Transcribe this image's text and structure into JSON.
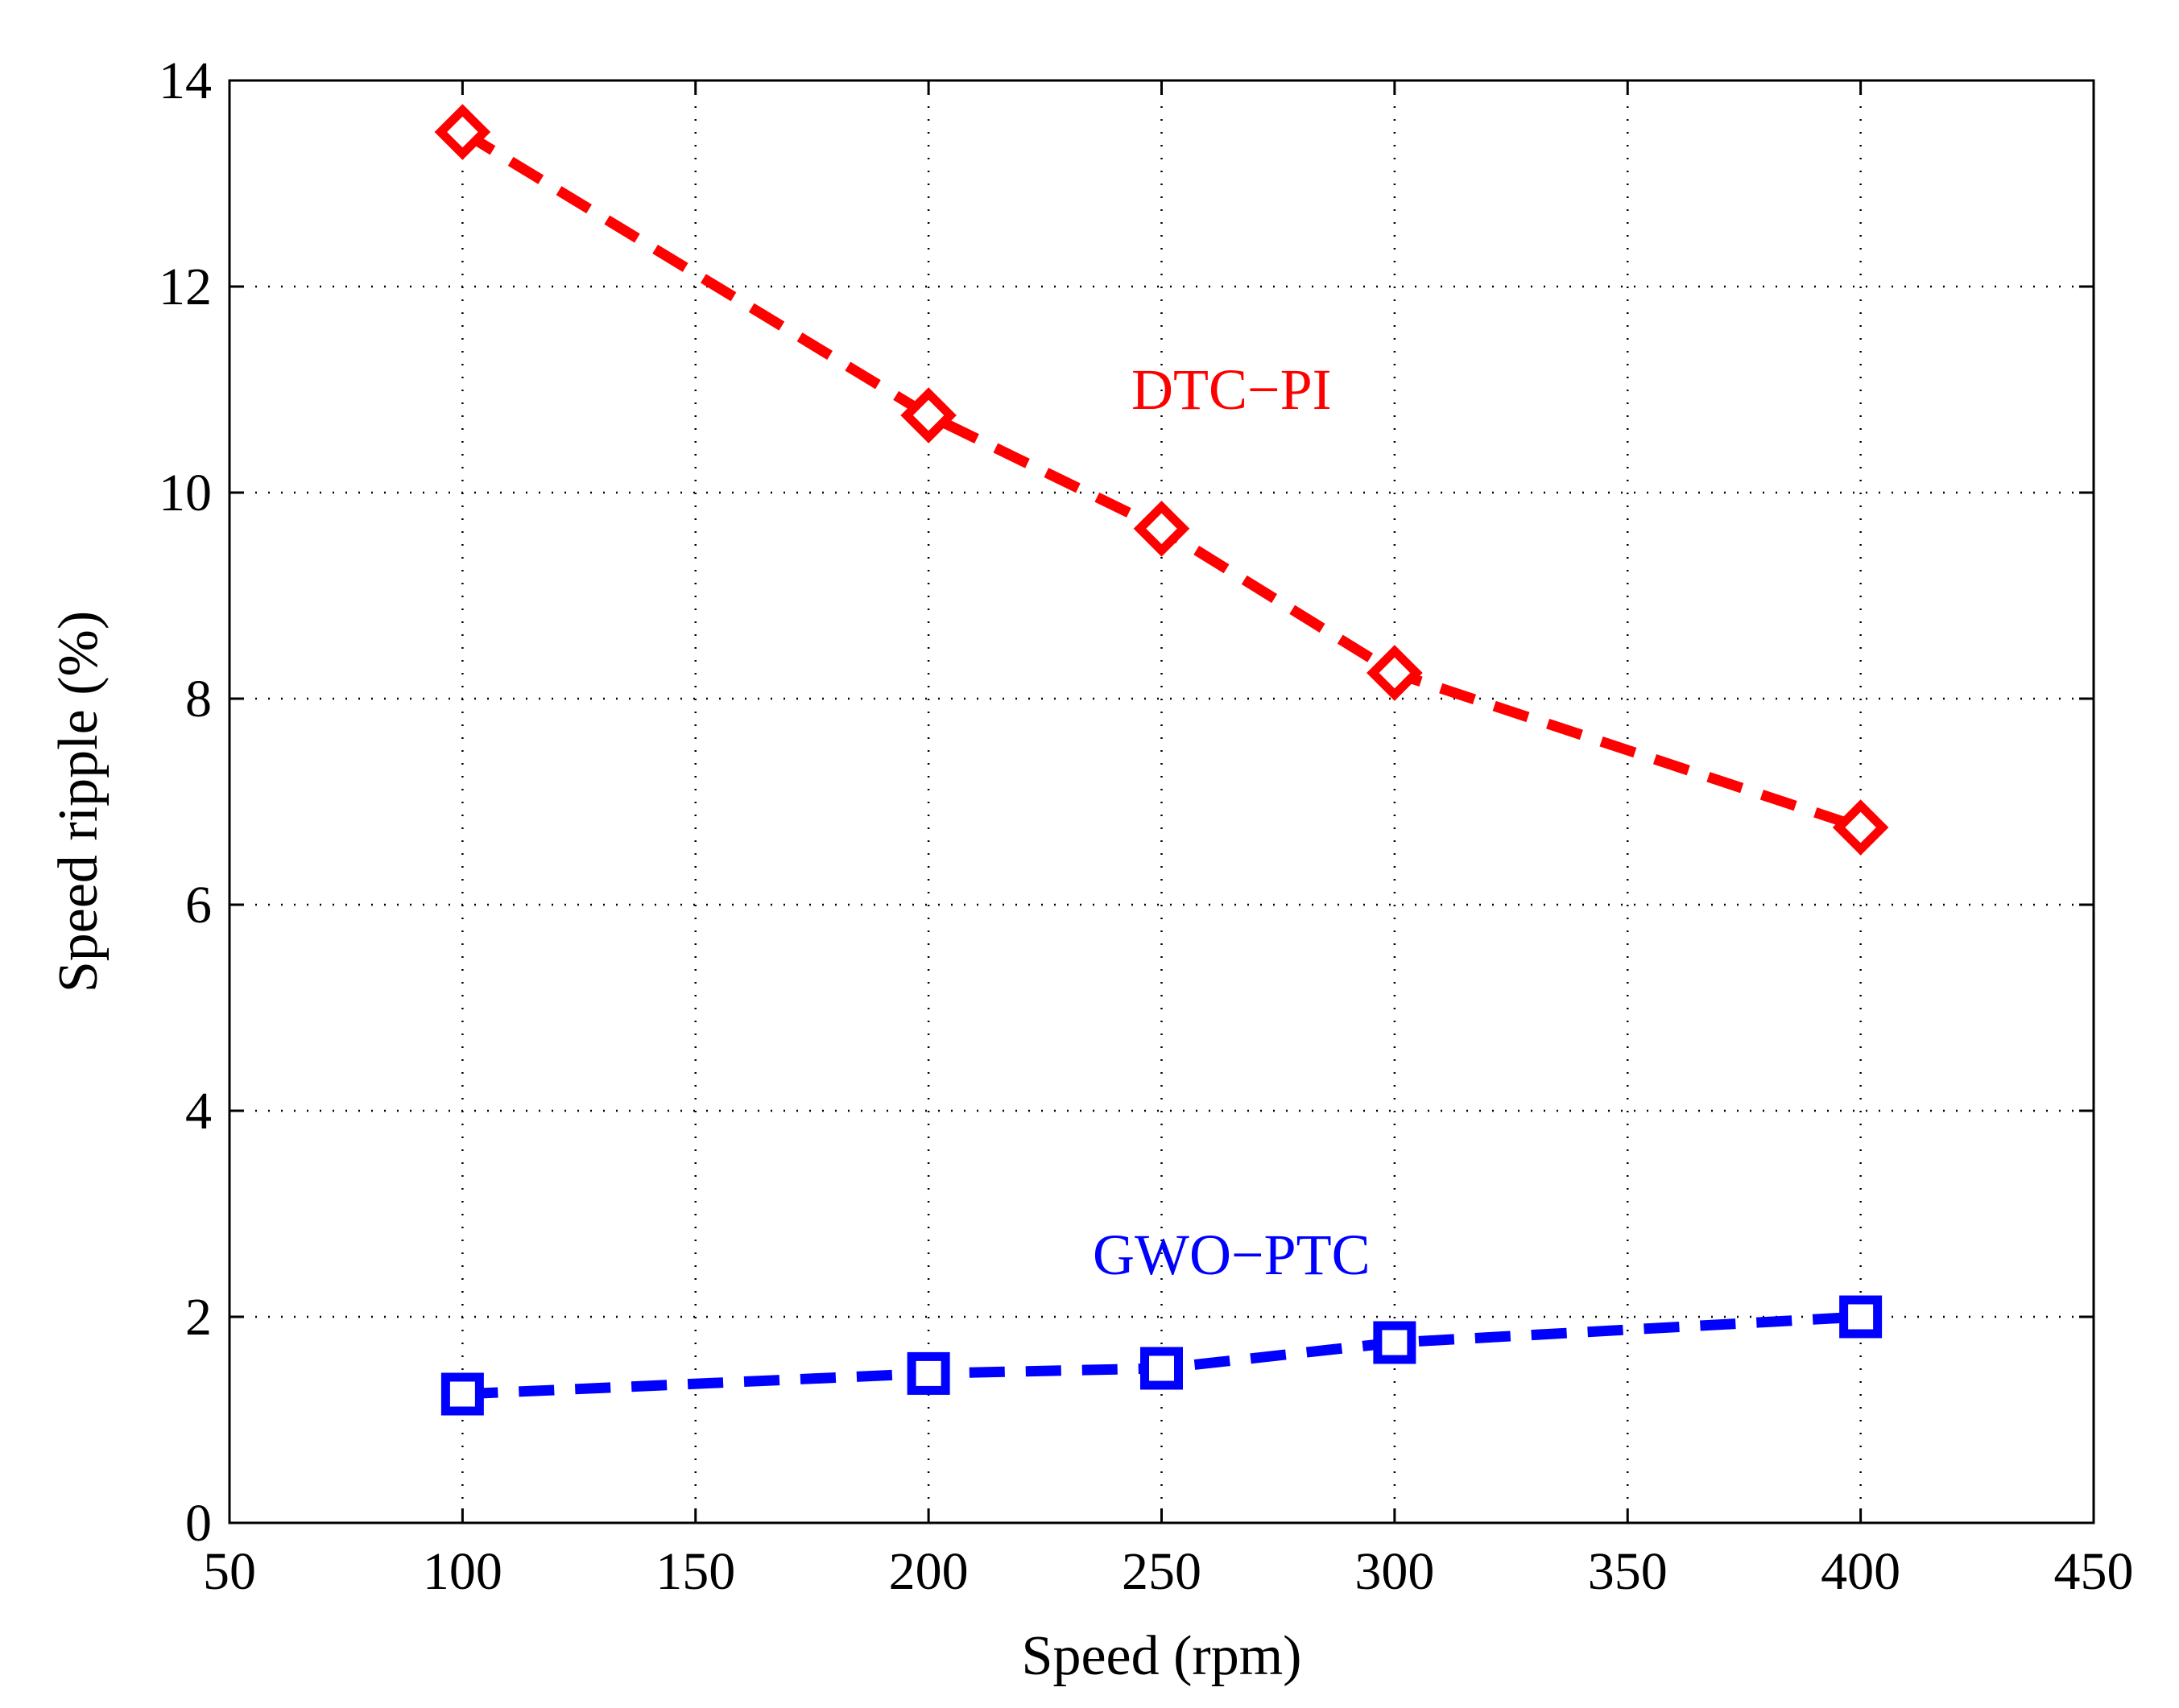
{
  "chart_data": {
    "type": "line",
    "xlabel": "Speed (rpm)",
    "ylabel": "Speed ripple (%)",
    "xlim": [
      50,
      450
    ],
    "ylim": [
      0,
      14
    ],
    "xticks": [
      50,
      100,
      150,
      200,
      250,
      300,
      350,
      400,
      450
    ],
    "yticks": [
      0,
      2,
      4,
      6,
      8,
      10,
      12,
      14
    ],
    "grid": true,
    "series": [
      {
        "name": "DTC−PI",
        "color": "#ff0000",
        "marker": "diamond",
        "line_style": "dashed",
        "x": [
          100,
          200,
          250,
          300,
          400
        ],
        "y": [
          13.5,
          10.75,
          9.65,
          8.25,
          6.75
        ],
        "label_at": [
          265,
          11.0
        ]
      },
      {
        "name": "GWO−PTC",
        "color": "#0000ff",
        "marker": "square",
        "line_style": "dashed",
        "x": [
          100,
          200,
          250,
          300,
          400
        ],
        "y": [
          1.25,
          1.45,
          1.5,
          1.75,
          2.0
        ],
        "label_at": [
          265,
          2.6
        ]
      }
    ]
  }
}
